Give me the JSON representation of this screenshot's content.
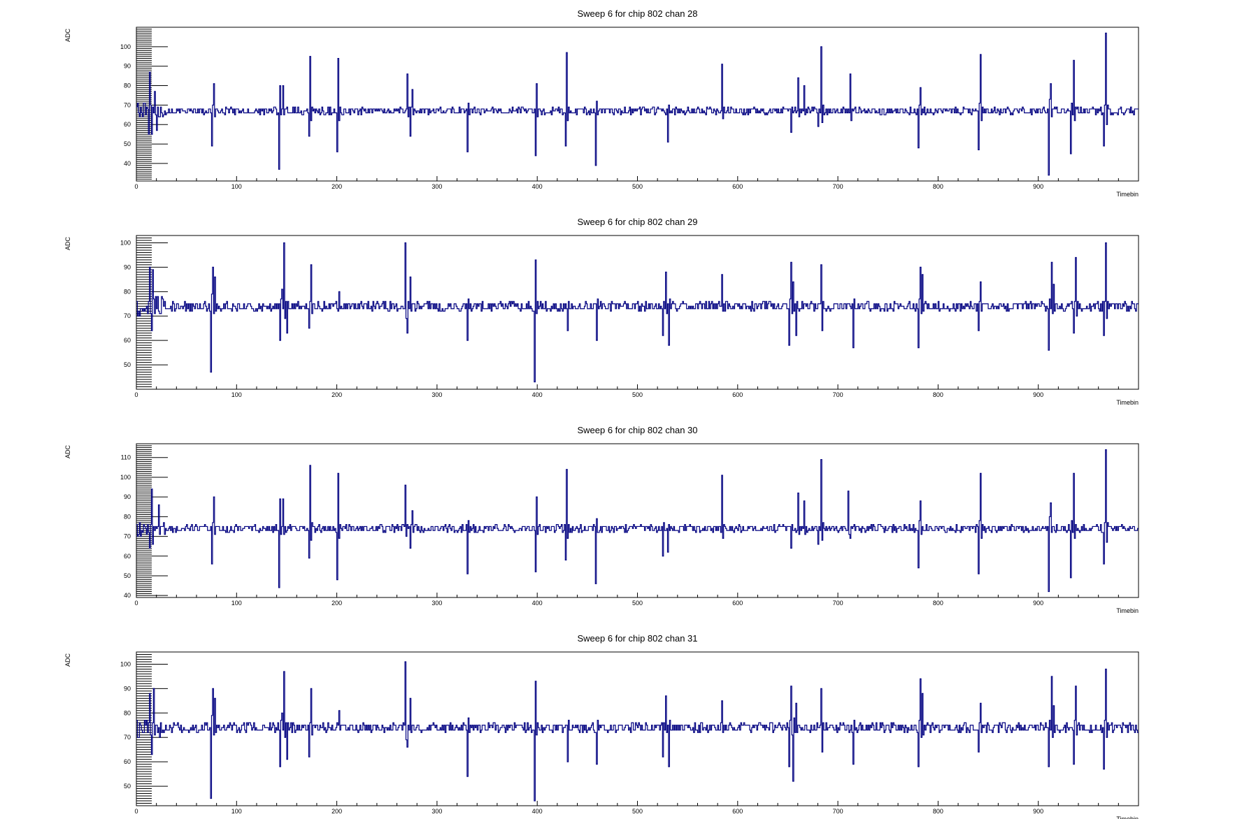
{
  "chart_data": [
    {
      "type": "line",
      "title": "Sweep 6 for chip 802 chan 28",
      "xlabel": "Timebin",
      "ylabel": "ADC",
      "xlim": [
        0,
        1000
      ],
      "ylim": [
        31,
        110
      ],
      "xticks": [
        0,
        100,
        200,
        300,
        400,
        500,
        600,
        700,
        800,
        900
      ],
      "yticks": [
        40,
        50,
        60,
        70,
        80,
        90,
        100
      ],
      "baseline": 67,
      "series": [
        {
          "color": "#000080",
          "spikes": [
            [
              12,
              -12
            ],
            [
              13,
              20
            ],
            [
              15,
              -12
            ],
            [
              18,
              10
            ],
            [
              20,
              -10
            ],
            [
              75,
              -18
            ],
            [
              77,
              14
            ],
            [
              142,
              -30
            ],
            [
              143,
              13
            ],
            [
              146,
              13
            ],
            [
              172,
              -13
            ],
            [
              173,
              28
            ],
            [
              200,
              -21
            ],
            [
              201,
              27
            ],
            [
              270,
              19
            ],
            [
              273,
              -13
            ],
            [
              275,
              11
            ],
            [
              330,
              -21
            ],
            [
              398,
              -23
            ],
            [
              399,
              14
            ],
            [
              428,
              -18
            ],
            [
              429,
              30
            ],
            [
              458,
              -28
            ],
            [
              530,
              -16
            ],
            [
              584,
              24
            ],
            [
              653,
              -11
            ],
            [
              660,
              17
            ],
            [
              666,
              13
            ],
            [
              680,
              -8
            ],
            [
              683,
              33
            ],
            [
              712,
              19
            ],
            [
              713,
              -5
            ],
            [
              780,
              -19
            ],
            [
              782,
              12
            ],
            [
              840,
              -20
            ],
            [
              842,
              29
            ],
            [
              910,
              -33
            ],
            [
              912,
              14
            ],
            [
              932,
              -22
            ],
            [
              935,
              26
            ],
            [
              965,
              -18
            ],
            [
              967,
              40
            ]
          ]
        }
      ]
    },
    {
      "type": "line",
      "title": "Sweep 6 for chip 802 chan 29",
      "xlabel": "Timebin",
      "ylabel": "ADC",
      "xlim": [
        0,
        1000
      ],
      "ylim": [
        40,
        103
      ],
      "xticks": [
        0,
        100,
        200,
        300,
        400,
        500,
        600,
        700,
        800,
        900
      ],
      "yticks": [
        50,
        60,
        70,
        80,
        90,
        100
      ],
      "baseline": 74,
      "series": [
        {
          "color": "#000080",
          "spikes": [
            [
              13,
              16
            ],
            [
              15,
              -10
            ],
            [
              16,
              15
            ],
            [
              74,
              -27
            ],
            [
              76,
              16
            ],
            [
              78,
              12
            ],
            [
              143,
              -14
            ],
            [
              145,
              7
            ],
            [
              147,
              26
            ],
            [
              150,
              -11
            ],
            [
              172,
              -9
            ],
            [
              174,
              17
            ],
            [
              202,
              6
            ],
            [
              268,
              26
            ],
            [
              270,
              -11
            ],
            [
              273,
              12
            ],
            [
              330,
              -14
            ],
            [
              397,
              -31
            ],
            [
              398,
              19
            ],
            [
              430,
              -10
            ],
            [
              459,
              -14
            ],
            [
              525,
              -12
            ],
            [
              528,
              14
            ],
            [
              531,
              -16
            ],
            [
              584,
              13
            ],
            [
              651,
              -16
            ],
            [
              653,
              18
            ],
            [
              655,
              10
            ],
            [
              658,
              -12
            ],
            [
              683,
              17
            ],
            [
              684,
              -10
            ],
            [
              715,
              -17
            ],
            [
              780,
              -17
            ],
            [
              782,
              16
            ],
            [
              784,
              13
            ],
            [
              840,
              -10
            ],
            [
              842,
              10
            ],
            [
              910,
              -18
            ],
            [
              913,
              18
            ],
            [
              915,
              9
            ],
            [
              935,
              -11
            ],
            [
              937,
              20
            ],
            [
              965,
              -12
            ],
            [
              967,
              26
            ]
          ]
        }
      ]
    },
    {
      "type": "line",
      "title": "Sweep 6 for chip 802 chan 30",
      "xlabel": "Timebin",
      "ylabel": "ADC",
      "xlim": [
        0,
        1000
      ],
      "ylim": [
        39,
        117
      ],
      "xticks": [
        0,
        100,
        200,
        300,
        400,
        500,
        600,
        700,
        800,
        900
      ],
      "yticks": [
        40,
        50,
        60,
        70,
        80,
        90,
        100,
        110
      ],
      "baseline": 74,
      "series": [
        {
          "color": "#000080",
          "spikes": [
            [
              13,
              -10
            ],
            [
              15,
              20
            ],
            [
              16,
              -8
            ],
            [
              22,
              12
            ],
            [
              75,
              -18
            ],
            [
              77,
              16
            ],
            [
              142,
              -30
            ],
            [
              143,
              15
            ],
            [
              146,
              15
            ],
            [
              172,
              -15
            ],
            [
              173,
              32
            ],
            [
              200,
              -26
            ],
            [
              201,
              28
            ],
            [
              268,
              22
            ],
            [
              273,
              -10
            ],
            [
              275,
              9
            ],
            [
              330,
              -23
            ],
            [
              398,
              -22
            ],
            [
              399,
              16
            ],
            [
              428,
              -16
            ],
            [
              429,
              30
            ],
            [
              458,
              -28
            ],
            [
              525,
              -14
            ],
            [
              530,
              -12
            ],
            [
              584,
              27
            ],
            [
              653,
              -10
            ],
            [
              660,
              18
            ],
            [
              666,
              14
            ],
            [
              680,
              -8
            ],
            [
              683,
              35
            ],
            [
              710,
              19
            ],
            [
              712,
              -5
            ],
            [
              780,
              -20
            ],
            [
              782,
              14
            ],
            [
              840,
              -23
            ],
            [
              842,
              28
            ],
            [
              910,
              -32
            ],
            [
              912,
              13
            ],
            [
              932,
              -25
            ],
            [
              935,
              28
            ],
            [
              965,
              -18
            ],
            [
              967,
              40
            ]
          ]
        }
      ]
    },
    {
      "type": "line",
      "title": "Sweep 6 for chip 802 chan 31",
      "xlabel": "Timebin",
      "ylabel": "ADC",
      "xlim": [
        0,
        1000
      ],
      "ylim": [
        42,
        105
      ],
      "xticks": [
        0,
        100,
        200,
        300,
        400,
        500,
        600,
        700,
        800,
        900
      ],
      "yticks": [
        50,
        60,
        70,
        80,
        90,
        100
      ],
      "baseline": 74,
      "series": [
        {
          "color": "#000080",
          "spikes": [
            [
              13,
              14
            ],
            [
              15,
              -11
            ],
            [
              17,
              16
            ],
            [
              74,
              -29
            ],
            [
              76,
              16
            ],
            [
              78,
              12
            ],
            [
              143,
              -16
            ],
            [
              145,
              6
            ],
            [
              147,
              23
            ],
            [
              150,
              -13
            ],
            [
              172,
              -12
            ],
            [
              174,
              16
            ],
            [
              202,
              7
            ],
            [
              268,
              27
            ],
            [
              270,
              -8
            ],
            [
              273,
              12
            ],
            [
              330,
              -20
            ],
            [
              397,
              -30
            ],
            [
              398,
              19
            ],
            [
              430,
              -14
            ],
            [
              459,
              -15
            ],
            [
              525,
              -12
            ],
            [
              528,
              13
            ],
            [
              531,
              -16
            ],
            [
              584,
              11
            ],
            [
              651,
              -16
            ],
            [
              653,
              17
            ],
            [
              655,
              -22
            ],
            [
              658,
              10
            ],
            [
              683,
              16
            ],
            [
              684,
              -10
            ],
            [
              715,
              -15
            ],
            [
              780,
              -16
            ],
            [
              782,
              20
            ],
            [
              784,
              14
            ],
            [
              840,
              -10
            ],
            [
              842,
              10
            ],
            [
              910,
              -16
            ],
            [
              913,
              21
            ],
            [
              915,
              9
            ],
            [
              935,
              -15
            ],
            [
              937,
              17
            ],
            [
              965,
              -17
            ],
            [
              967,
              24
            ]
          ]
        }
      ]
    }
  ]
}
